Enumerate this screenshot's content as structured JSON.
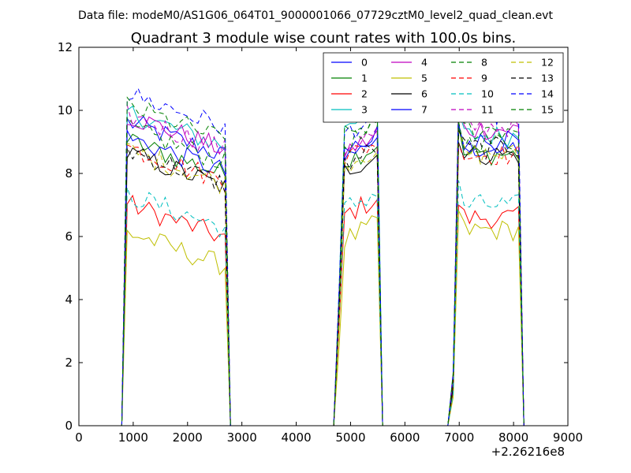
{
  "figure": {
    "suptitle": "Data file: modeM0/AS1G06_064T01_9000001066_07729cztM0_level2_quad_clean.evt"
  },
  "chart_data": {
    "type": "line",
    "title": "Quadrant 3 module wise count rates with 100.0s bins.",
    "xlabel": "",
    "ylabel": "",
    "x_offset_label": "+2.26216e8",
    "xlim": [
      0,
      9000
    ],
    "ylim": [
      0,
      12
    ],
    "xticks": [
      0,
      1000,
      2000,
      3000,
      4000,
      5000,
      6000,
      7000,
      8000,
      9000
    ],
    "yticks": [
      0,
      2,
      4,
      6,
      8,
      10,
      12
    ],
    "grid": false,
    "legend": {
      "placement": "top-right",
      "columns": 4
    },
    "segments": [
      {
        "start": 890,
        "end": 2690,
        "tail_end": 2790
      },
      {
        "start": 4790,
        "end": 5490,
        "tail_end": 5590
      },
      {
        "start": 6890,
        "end": 8090,
        "tail_end": 8190
      }
    ],
    "series": [
      {
        "name": "0",
        "color": "#0000ff",
        "dash": false,
        "levels": [
          9.4,
          8.6,
          8.8
        ]
      },
      {
        "name": "1",
        "color": "#008000",
        "dash": false,
        "levels": [
          8.8,
          8.3,
          8.6
        ]
      },
      {
        "name": "2",
        "color": "#ff0000",
        "dash": false,
        "levels": [
          6.8,
          6.6,
          6.6
        ]
      },
      {
        "name": "3",
        "color": "#00bfbf",
        "dash": false,
        "levels": [
          9.7,
          9.5,
          9.2
        ]
      },
      {
        "name": "4",
        "color": "#bf00bf",
        "dash": false,
        "levels": [
          9.6,
          8.6,
          9.4
        ]
      },
      {
        "name": "5",
        "color": "#bfbf00",
        "dash": false,
        "levels": [
          5.9,
          5.8,
          6.2
        ]
      },
      {
        "name": "6",
        "color": "#000000",
        "dash": false,
        "levels": [
          8.4,
          8.0,
          8.6
        ]
      },
      {
        "name": "7",
        "color": "#0000ff",
        "dash": false,
        "levels": [
          8.9,
          8.4,
          9.0
        ]
      },
      {
        "name": "8",
        "color": "#008000",
        "dash": true,
        "levels": [
          9.2,
          8.8,
          9.0
        ]
      },
      {
        "name": "9",
        "color": "#ff0000",
        "dash": true,
        "levels": [
          8.6,
          8.4,
          8.6
        ]
      },
      {
        "name": "10",
        "color": "#00bfbf",
        "dash": true,
        "levels": [
          7.1,
          6.8,
          7.0
        ]
      },
      {
        "name": "11",
        "color": "#bf00bf",
        "dash": true,
        "levels": [
          9.6,
          8.7,
          9.5
        ]
      },
      {
        "name": "12",
        "color": "#bfbf00",
        "dash": true,
        "levels": [
          8.5,
          8.2,
          8.6
        ]
      },
      {
        "name": "13",
        "color": "#000000",
        "dash": true,
        "levels": [
          8.5,
          8.2,
          8.8
        ]
      },
      {
        "name": "14",
        "color": "#0000ff",
        "dash": true,
        "levels": [
          10.3,
          9.2,
          9.9
        ]
      },
      {
        "name": "15",
        "color": "#008000",
        "dash": true,
        "levels": [
          9.9,
          9.1,
          9.4
        ]
      }
    ]
  }
}
